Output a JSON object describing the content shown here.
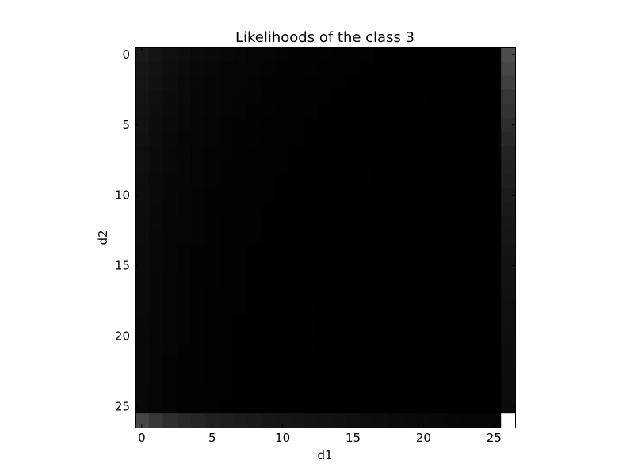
{
  "chart_data": {
    "type": "heatmap",
    "title": "Likelihoods of the class 3",
    "xlabel": "d1",
    "ylabel": "d2",
    "rows": 27,
    "cols": 27,
    "xlim": [
      -0.5,
      26.5
    ],
    "ylim": [
      26.5,
      -0.5
    ],
    "x_ticks": [
      0,
      5,
      10,
      15,
      20,
      25
    ],
    "y_ticks": [
      0,
      5,
      10,
      15,
      20,
      25
    ],
    "colormap": "gray",
    "grid": false,
    "values": [
      [
        0.1,
        0.08,
        0.06,
        0.05,
        0.04,
        0.035,
        0.03,
        0.025,
        0.02,
        0.018,
        0.015,
        0.013,
        0.011,
        0.01,
        0.008,
        0.007,
        0.006,
        0.005,
        0.004,
        0.003,
        0.003,
        0.002,
        0.002,
        0.002,
        0.001,
        0.001,
        0.3
      ],
      [
        0.09,
        0.07,
        0.055,
        0.045,
        0.035,
        0.03,
        0.025,
        0.02,
        0.018,
        0.015,
        0.013,
        0.011,
        0.01,
        0.008,
        0.007,
        0.006,
        0.005,
        0.004,
        0.003,
        0.003,
        0.002,
        0.002,
        0.002,
        0.001,
        0.001,
        0.001,
        0.28
      ],
      [
        0.085,
        0.065,
        0.05,
        0.04,
        0.032,
        0.027,
        0.022,
        0.018,
        0.015,
        0.013,
        0.011,
        0.01,
        0.008,
        0.007,
        0.006,
        0.005,
        0.004,
        0.003,
        0.003,
        0.002,
        0.002,
        0.002,
        0.001,
        0.001,
        0.001,
        0.001,
        0.25
      ],
      [
        0.08,
        0.06,
        0.045,
        0.036,
        0.029,
        0.024,
        0.02,
        0.016,
        0.014,
        0.012,
        0.01,
        0.008,
        0.007,
        0.006,
        0.005,
        0.004,
        0.003,
        0.003,
        0.002,
        0.002,
        0.002,
        0.001,
        0.001,
        0.001,
        0.001,
        0.001,
        0.22
      ],
      [
        0.075,
        0.055,
        0.042,
        0.033,
        0.027,
        0.022,
        0.018,
        0.015,
        0.012,
        0.01,
        0.009,
        0.007,
        0.006,
        0.005,
        0.004,
        0.003,
        0.003,
        0.002,
        0.002,
        0.002,
        0.001,
        0.001,
        0.001,
        0.001,
        0.001,
        0.001,
        0.2
      ],
      [
        0.07,
        0.05,
        0.038,
        0.03,
        0.024,
        0.02,
        0.016,
        0.013,
        0.011,
        0.009,
        0.008,
        0.006,
        0.005,
        0.004,
        0.004,
        0.003,
        0.002,
        0.002,
        0.002,
        0.001,
        0.001,
        0.001,
        0.001,
        0.001,
        0.001,
        0.001,
        0.18
      ],
      [
        0.065,
        0.047,
        0.035,
        0.028,
        0.022,
        0.018,
        0.015,
        0.012,
        0.01,
        0.008,
        0.007,
        0.006,
        0.005,
        0.004,
        0.003,
        0.003,
        0.002,
        0.002,
        0.001,
        0.001,
        0.001,
        0.001,
        0.001,
        0.001,
        0.001,
        0.001,
        0.16
      ],
      [
        0.06,
        0.044,
        0.033,
        0.026,
        0.02,
        0.017,
        0.014,
        0.011,
        0.009,
        0.007,
        0.006,
        0.005,
        0.004,
        0.004,
        0.003,
        0.002,
        0.002,
        0.002,
        0.001,
        0.001,
        0.001,
        0.001,
        0.001,
        0.001,
        0.001,
        0.001,
        0.14
      ],
      [
        0.058,
        0.042,
        0.031,
        0.024,
        0.019,
        0.015,
        0.012,
        0.01,
        0.008,
        0.007,
        0.006,
        0.005,
        0.004,
        0.003,
        0.003,
        0.002,
        0.002,
        0.001,
        0.001,
        0.001,
        0.001,
        0.001,
        0.001,
        0.001,
        0.001,
        0.001,
        0.13
      ],
      [
        0.055,
        0.04,
        0.029,
        0.023,
        0.018,
        0.014,
        0.011,
        0.009,
        0.008,
        0.006,
        0.005,
        0.004,
        0.004,
        0.003,
        0.002,
        0.002,
        0.002,
        0.001,
        0.001,
        0.001,
        0.001,
        0.001,
        0.001,
        0.001,
        0.001,
        0.001,
        0.12
      ],
      [
        0.052,
        0.038,
        0.028,
        0.021,
        0.017,
        0.013,
        0.011,
        0.009,
        0.007,
        0.006,
        0.005,
        0.004,
        0.003,
        0.003,
        0.002,
        0.002,
        0.001,
        0.001,
        0.001,
        0.001,
        0.001,
        0.001,
        0.001,
        0.001,
        0.001,
        0.001,
        0.11
      ],
      [
        0.05,
        0.036,
        0.026,
        0.02,
        0.016,
        0.012,
        0.01,
        0.008,
        0.007,
        0.005,
        0.004,
        0.004,
        0.003,
        0.002,
        0.002,
        0.002,
        0.001,
        0.001,
        0.001,
        0.001,
        0.001,
        0.001,
        0.001,
        0.001,
        0.001,
        0.001,
        0.1
      ],
      [
        0.048,
        0.034,
        0.025,
        0.019,
        0.015,
        0.012,
        0.009,
        0.008,
        0.006,
        0.005,
        0.004,
        0.003,
        0.003,
        0.002,
        0.002,
        0.001,
        0.001,
        0.001,
        0.001,
        0.001,
        0.001,
        0.001,
        0.001,
        0.001,
        0.001,
        0.001,
        0.09
      ],
      [
        0.046,
        0.033,
        0.024,
        0.018,
        0.014,
        0.011,
        0.009,
        0.007,
        0.006,
        0.005,
        0.004,
        0.003,
        0.003,
        0.002,
        0.002,
        0.001,
        0.001,
        0.001,
        0.001,
        0.001,
        0.001,
        0.001,
        0.001,
        0.001,
        0.001,
        0.001,
        0.085
      ],
      [
        0.044,
        0.031,
        0.023,
        0.017,
        0.013,
        0.011,
        0.008,
        0.007,
        0.005,
        0.004,
        0.004,
        0.003,
        0.002,
        0.002,
        0.002,
        0.001,
        0.001,
        0.001,
        0.001,
        0.001,
        0.001,
        0.001,
        0.001,
        0.001,
        0.001,
        0.001,
        0.08
      ],
      [
        0.042,
        0.03,
        0.022,
        0.016,
        0.013,
        0.01,
        0.008,
        0.006,
        0.005,
        0.004,
        0.003,
        0.003,
        0.002,
        0.002,
        0.001,
        0.001,
        0.001,
        0.001,
        0.001,
        0.001,
        0.001,
        0.001,
        0.001,
        0.001,
        0.001,
        0.001,
        0.075
      ],
      [
        0.04,
        0.029,
        0.021,
        0.016,
        0.012,
        0.01,
        0.008,
        0.006,
        0.005,
        0.004,
        0.003,
        0.003,
        0.002,
        0.002,
        0.001,
        0.001,
        0.001,
        0.001,
        0.001,
        0.001,
        0.001,
        0.001,
        0.001,
        0.001,
        0.001,
        0.001,
        0.07
      ],
      [
        0.039,
        0.028,
        0.02,
        0.015,
        0.012,
        0.009,
        0.007,
        0.006,
        0.005,
        0.004,
        0.003,
        0.002,
        0.002,
        0.002,
        0.001,
        0.001,
        0.001,
        0.001,
        0.001,
        0.001,
        0.001,
        0.001,
        0.001,
        0.001,
        0.001,
        0.001,
        0.065
      ],
      [
        0.038,
        0.027,
        0.019,
        0.015,
        0.011,
        0.009,
        0.007,
        0.006,
        0.004,
        0.004,
        0.003,
        0.002,
        0.002,
        0.001,
        0.001,
        0.001,
        0.001,
        0.001,
        0.001,
        0.001,
        0.001,
        0.001,
        0.001,
        0.001,
        0.001,
        0.001,
        0.06
      ],
      [
        0.037,
        0.026,
        0.019,
        0.014,
        0.011,
        0.008,
        0.007,
        0.005,
        0.004,
        0.003,
        0.003,
        0.002,
        0.002,
        0.001,
        0.001,
        0.001,
        0.001,
        0.001,
        0.001,
        0.001,
        0.001,
        0.001,
        0.001,
        0.001,
        0.001,
        0.001,
        0.058
      ],
      [
        0.036,
        0.025,
        0.018,
        0.014,
        0.011,
        0.008,
        0.006,
        0.005,
        0.004,
        0.003,
        0.003,
        0.002,
        0.002,
        0.001,
        0.001,
        0.001,
        0.001,
        0.001,
        0.001,
        0.001,
        0.001,
        0.001,
        0.001,
        0.001,
        0.001,
        0.001,
        0.055
      ],
      [
        0.035,
        0.025,
        0.018,
        0.013,
        0.01,
        0.008,
        0.006,
        0.005,
        0.004,
        0.003,
        0.002,
        0.002,
        0.002,
        0.001,
        0.001,
        0.001,
        0.001,
        0.001,
        0.001,
        0.001,
        0.001,
        0.001,
        0.001,
        0.001,
        0.001,
        0.001,
        0.052
      ],
      [
        0.034,
        0.024,
        0.017,
        0.013,
        0.01,
        0.008,
        0.006,
        0.005,
        0.004,
        0.003,
        0.002,
        0.002,
        0.001,
        0.001,
        0.001,
        0.001,
        0.001,
        0.001,
        0.001,
        0.001,
        0.001,
        0.001,
        0.001,
        0.001,
        0.001,
        0.001,
        0.05
      ],
      [
        0.034,
        0.024,
        0.017,
        0.013,
        0.01,
        0.007,
        0.006,
        0.005,
        0.004,
        0.003,
        0.002,
        0.002,
        0.001,
        0.001,
        0.001,
        0.001,
        0.001,
        0.001,
        0.001,
        0.001,
        0.001,
        0.001,
        0.001,
        0.001,
        0.001,
        0.001,
        0.048
      ],
      [
        0.033,
        0.023,
        0.017,
        0.012,
        0.009,
        0.007,
        0.006,
        0.004,
        0.003,
        0.003,
        0.002,
        0.002,
        0.001,
        0.001,
        0.001,
        0.001,
        0.001,
        0.001,
        0.001,
        0.001,
        0.001,
        0.001,
        0.001,
        0.001,
        0.001,
        0.001,
        0.046
      ],
      [
        0.033,
        0.023,
        0.016,
        0.012,
        0.009,
        0.007,
        0.005,
        0.004,
        0.003,
        0.003,
        0.002,
        0.002,
        0.001,
        0.001,
        0.001,
        0.001,
        0.001,
        0.001,
        0.001,
        0.001,
        0.001,
        0.001,
        0.001,
        0.001,
        0.001,
        0.001,
        0.044
      ],
      [
        0.28,
        0.22,
        0.18,
        0.16,
        0.15,
        0.13,
        0.12,
        0.11,
        0.1,
        0.09,
        0.085,
        0.08,
        0.075,
        0.07,
        0.065,
        0.06,
        0.055,
        0.05,
        0.045,
        0.04,
        0.035,
        0.03,
        0.028,
        0.025,
        0.022,
        0.02,
        1.0
      ]
    ]
  }
}
